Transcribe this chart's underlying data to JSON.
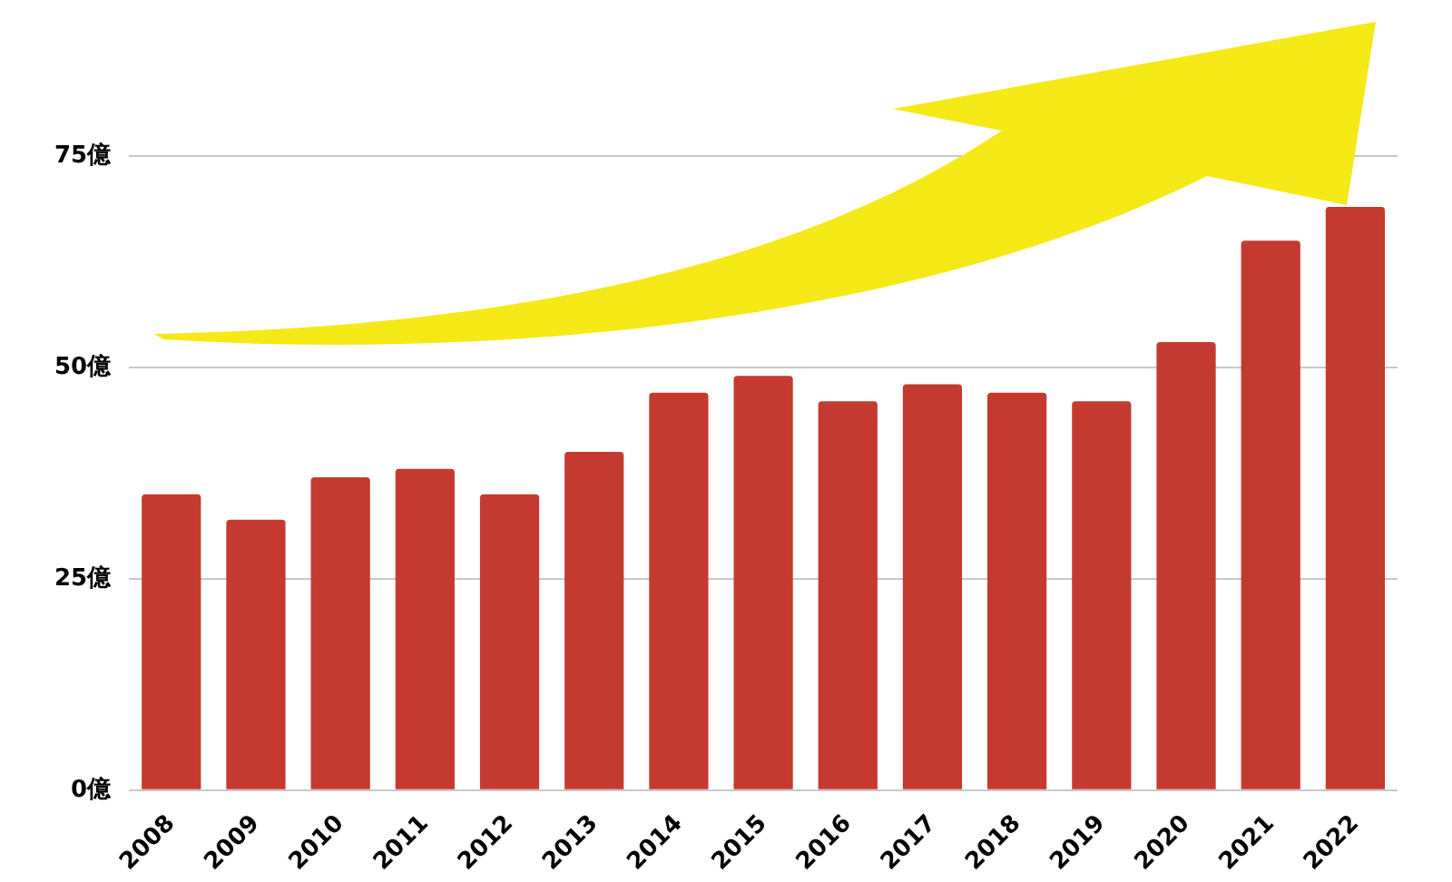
{
  "chart_data": {
    "type": "bar",
    "categories": [
      "2008",
      "2009",
      "2010",
      "2011",
      "2012",
      "2013",
      "2014",
      "2015",
      "2016",
      "2017",
      "2018",
      "2019",
      "2020",
      "2021",
      "2022"
    ],
    "values": [
      35,
      32,
      37,
      38,
      35,
      40,
      47,
      49,
      46,
      48,
      47,
      46,
      53,
      65,
      69
    ],
    "color": "#c43a31",
    "ylim": [
      0,
      75
    ],
    "yticks": [
      {
        "value": 0,
        "label": "0億"
      },
      {
        "value": 25,
        "label": "25億"
      },
      {
        "value": 50,
        "label": "50億"
      },
      {
        "value": 75,
        "label": "75億"
      }
    ],
    "grid": "y",
    "legend": false
  }
}
